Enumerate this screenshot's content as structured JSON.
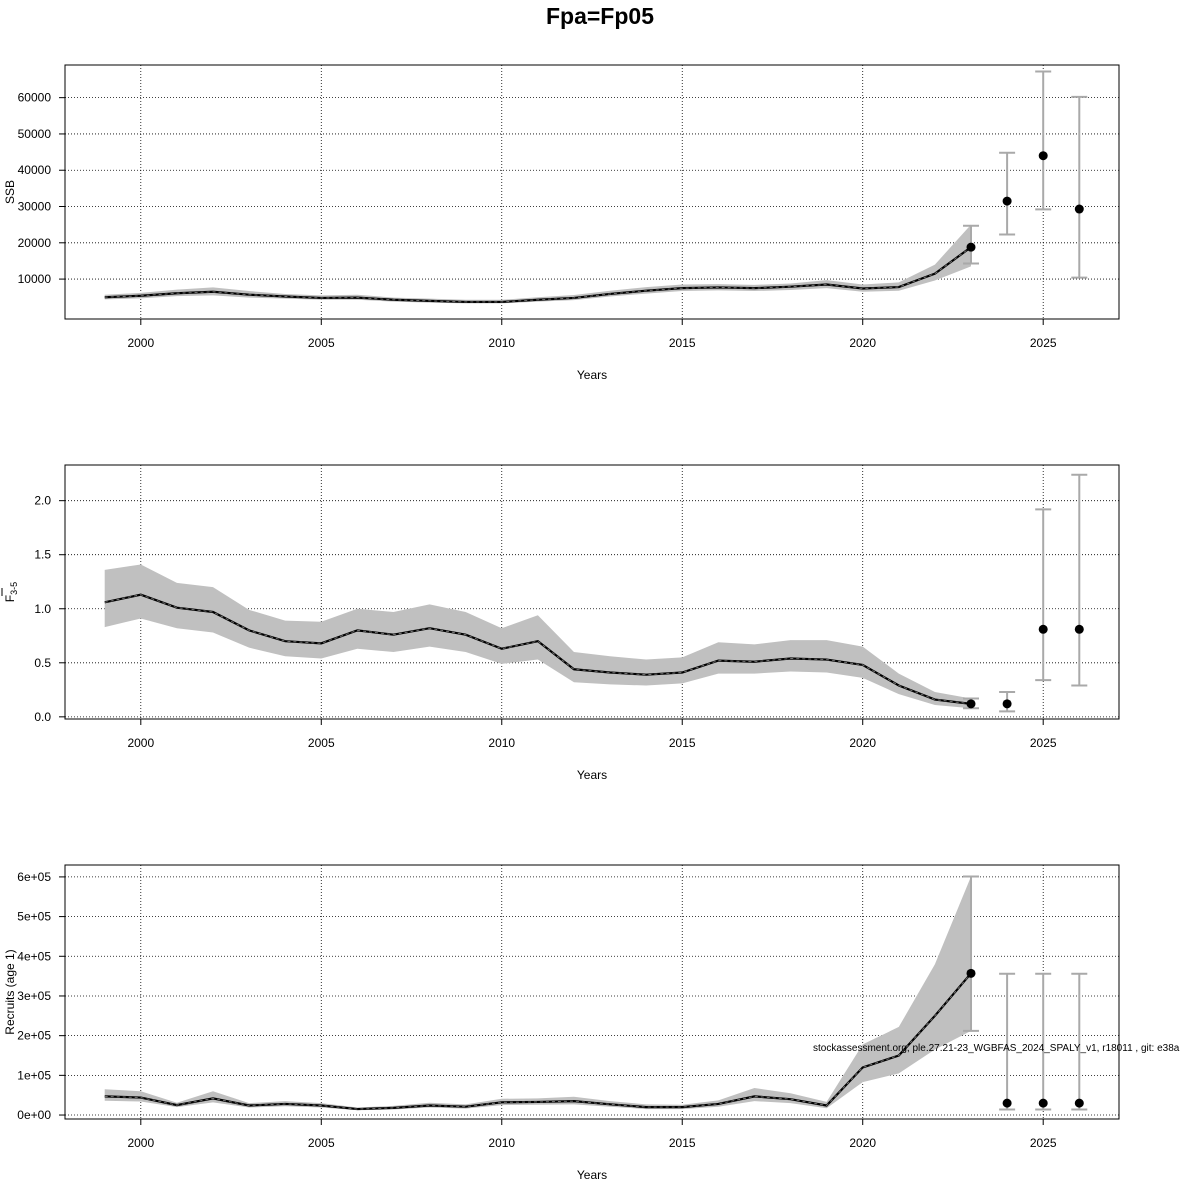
{
  "title": "Fpa=Fp05",
  "watermark": "stockassessment.org, ple.27.21-23_WGBFAS_2024_SPALY_v1, r18011 , git: e38a",
  "colors": {
    "band": "#c0c0c0",
    "line": "#000000",
    "errorbar": "#a9a9a9",
    "grid": "#000000",
    "frame": "#000000"
  },
  "chart_data": [
    {
      "type": "line",
      "panel": "ssb",
      "xlabel": "Years",
      "ylabel": "SSB",
      "ylabel_sub": "",
      "ylabel_bar": false,
      "xlim": [
        1997.9,
        2027.1
      ],
      "ylim": [
        -1000,
        69000
      ],
      "xticks": [
        2000,
        2005,
        2010,
        2015,
        2020,
        2025
      ],
      "yticks": [
        10000,
        20000,
        30000,
        40000,
        50000,
        60000
      ],
      "ytick_labels": [
        "10000",
        "20000",
        "30000",
        "40000",
        "50000",
        "60000"
      ],
      "grid": true,
      "x": [
        1999,
        2000,
        2001,
        2002,
        2003,
        2004,
        2005,
        2006,
        2007,
        2008,
        2009,
        2010,
        2011,
        2012,
        2013,
        2014,
        2015,
        2016,
        2017,
        2018,
        2019,
        2020,
        2021,
        2022,
        2023
      ],
      "estimate": [
        5000,
        5400,
        6100,
        6500,
        5700,
        5200,
        4800,
        4900,
        4300,
        4000,
        3700,
        3700,
        4300,
        4800,
        5900,
        6800,
        7500,
        7700,
        7500,
        7900,
        8500,
        7400,
        7800,
        11500,
        18800
      ],
      "lower": [
        4400,
        4700,
        5300,
        5500,
        4900,
        4600,
        4300,
        4300,
        3800,
        3500,
        3300,
        3300,
        3800,
        4200,
        5200,
        6000,
        6700,
        6900,
        6700,
        7000,
        7500,
        6500,
        6800,
        9600,
        13500
      ],
      "upper": [
        5700,
        6200,
        7100,
        7700,
        6700,
        5900,
        5500,
        5700,
        4900,
        4600,
        4300,
        4300,
        5000,
        5600,
        6800,
        7800,
        8500,
        8600,
        8400,
        8800,
        9700,
        8500,
        9100,
        14000,
        25000
      ],
      "points": [
        {
          "x": 2023,
          "y": 18800,
          "lower": 14300,
          "upper": 24700
        },
        {
          "x": 2024,
          "y": 31500,
          "lower": 22300,
          "upper": 44800
        },
        {
          "x": 2025,
          "y": 44000,
          "lower": 29200,
          "upper": 67200
        },
        {
          "x": 2026,
          "y": 29300,
          "lower": 10400,
          "upper": 60200
        }
      ]
    },
    {
      "type": "line",
      "panel": "fbar",
      "xlabel": "Years",
      "ylabel": "F",
      "ylabel_sub": "3-5",
      "ylabel_bar": true,
      "xlim": [
        1997.9,
        2027.1
      ],
      "ylim": [
        -0.02,
        2.33
      ],
      "xticks": [
        2000,
        2005,
        2010,
        2015,
        2020,
        2025
      ],
      "yticks": [
        0.0,
        0.5,
        1.0,
        1.5,
        2.0
      ],
      "ytick_labels": [
        "0.0",
        "0.5",
        "1.0",
        "1.5",
        "2.0"
      ],
      "grid": true,
      "x": [
        1999,
        2000,
        2001,
        2002,
        2003,
        2004,
        2005,
        2006,
        2007,
        2008,
        2009,
        2010,
        2011,
        2012,
        2013,
        2014,
        2015,
        2016,
        2017,
        2018,
        2019,
        2020,
        2021,
        2022,
        2023
      ],
      "estimate": [
        1.06,
        1.13,
        1.01,
        0.97,
        0.8,
        0.7,
        0.68,
        0.8,
        0.76,
        0.82,
        0.76,
        0.63,
        0.7,
        0.44,
        0.41,
        0.39,
        0.41,
        0.52,
        0.51,
        0.54,
        0.53,
        0.48,
        0.29,
        0.16,
        0.12
      ],
      "lower": [
        0.83,
        0.91,
        0.82,
        0.78,
        0.64,
        0.56,
        0.54,
        0.63,
        0.6,
        0.65,
        0.6,
        0.49,
        0.53,
        0.32,
        0.3,
        0.29,
        0.31,
        0.4,
        0.4,
        0.42,
        0.41,
        0.36,
        0.21,
        0.11,
        0.08
      ],
      "upper": [
        1.36,
        1.41,
        1.24,
        1.2,
        0.99,
        0.89,
        0.88,
        1.0,
        0.97,
        1.04,
        0.97,
        0.82,
        0.94,
        0.6,
        0.56,
        0.53,
        0.55,
        0.69,
        0.67,
        0.71,
        0.71,
        0.65,
        0.4,
        0.23,
        0.17
      ],
      "points": [
        {
          "x": 2023,
          "y": 0.12,
          "lower": 0.08,
          "upper": 0.17
        },
        {
          "x": 2024,
          "y": 0.12,
          "lower": 0.05,
          "upper": 0.23
        },
        {
          "x": 2025,
          "y": 0.81,
          "lower": 0.34,
          "upper": 1.92
        },
        {
          "x": 2026,
          "y": 0.81,
          "lower": 0.29,
          "upper": 2.24
        }
      ]
    },
    {
      "type": "line",
      "panel": "recruits",
      "xlabel": "Years",
      "ylabel": "Recruits (age 1)",
      "ylabel_sub": "",
      "ylabel_bar": false,
      "xlim": [
        1997.9,
        2027.1
      ],
      "ylim": [
        -10000,
        630000
      ],
      "xticks": [
        2000,
        2005,
        2010,
        2015,
        2020,
        2025
      ],
      "yticks": [
        0,
        100000,
        200000,
        300000,
        400000,
        500000,
        600000
      ],
      "ytick_labels": [
        "0e+00",
        "1e+05",
        "2e+05",
        "3e+05",
        "4e+05",
        "5e+05",
        "6e+05"
      ],
      "grid": true,
      "x": [
        1999,
        2000,
        2001,
        2002,
        2003,
        2004,
        2005,
        2006,
        2007,
        2008,
        2009,
        2010,
        2011,
        2012,
        2013,
        2014,
        2015,
        2016,
        2017,
        2018,
        2019,
        2020,
        2021,
        2022,
        2023
      ],
      "estimate": [
        47000,
        44000,
        25000,
        42000,
        24000,
        28000,
        24000,
        15000,
        18000,
        24000,
        21000,
        32000,
        33000,
        35000,
        27000,
        20000,
        20000,
        28000,
        47000,
        40000,
        24000,
        120000,
        150000,
        250000,
        357000
      ],
      "lower": [
        36000,
        34000,
        20000,
        32000,
        19000,
        22000,
        19000,
        12000,
        14000,
        19000,
        16000,
        25000,
        26000,
        27000,
        21000,
        15000,
        15000,
        21000,
        35000,
        30000,
        17000,
        83000,
        105000,
        165000,
        212000
      ],
      "upper": [
        65000,
        60000,
        31000,
        60000,
        30000,
        35000,
        30000,
        19000,
        23000,
        31000,
        27000,
        41000,
        42000,
        46000,
        35000,
        27000,
        26000,
        37000,
        68000,
        55000,
        33000,
        178000,
        222000,
        380000,
        601000
      ],
      "points": [
        {
          "x": 2023,
          "y": 357000,
          "lower": 212000,
          "upper": 601000
        },
        {
          "x": 2024,
          "y": 30000,
          "lower": 14000,
          "upper": 356000
        },
        {
          "x": 2025,
          "y": 30000,
          "lower": 14000,
          "upper": 356000
        },
        {
          "x": 2026,
          "y": 30000,
          "lower": 14000,
          "upper": 356000
        }
      ]
    }
  ]
}
